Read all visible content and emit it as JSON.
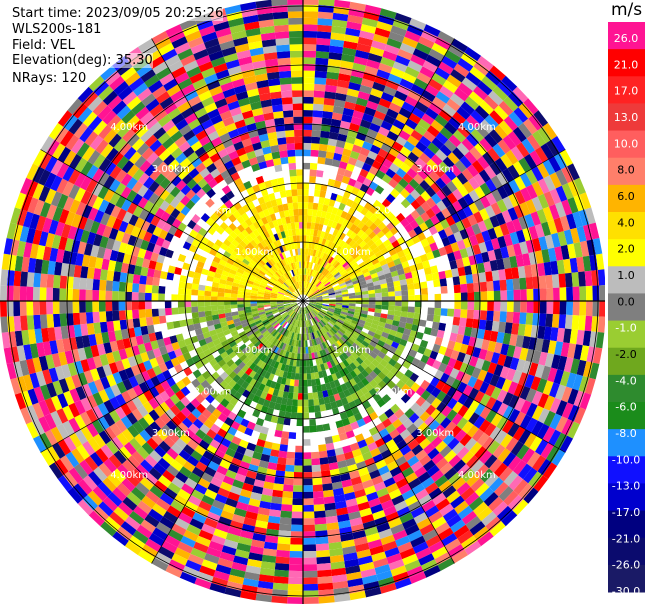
{
  "info": {
    "start_time": "Start time: 2023/09/05 20:25:26",
    "station": "WLS200s-181",
    "field": "Field: VEL",
    "elevation": "Elevation(deg): 35.30",
    "nrays": "NRays: 120"
  },
  "chart_data": {
    "type": "heatmap",
    "projection": "polar-ppi",
    "field": "VEL",
    "unit": "m/s",
    "nrays": 120,
    "range_ring_labels": [
      "1.00km",
      "2.00km",
      "3.00km",
      "4.00km"
    ],
    "colorbar": {
      "unit": "m/s",
      "ticks": [
        "26.0",
        "21.0",
        "17.0",
        "13.0",
        "10.0",
        "8.0",
        "6.0",
        "4.0",
        "2.0",
        "1.0",
        "0.0",
        "-1.0",
        "-2.0",
        "-4.0",
        "-6.0",
        "-8.0",
        "-10.0",
        "-13.0",
        "-17.0",
        "-21.0",
        "-26.0",
        "-30.0"
      ],
      "colors": [
        "#ff1493",
        "#ff0000",
        "#ff2222",
        "#ee3a3a",
        "#ff5e5e",
        "#ff7f6a",
        "#ffb400",
        "#ffe000",
        "#ffff00",
        "#bcbcbc",
        "#7f7f7f",
        "#9acd32",
        "#6fa81e",
        "#2e8b2e",
        "#1b8c1b",
        "#1e90ff",
        "#1010ff",
        "#0000cd",
        "#000080",
        "#0b0b6e",
        "#1a1a66"
      ]
    }
  }
}
